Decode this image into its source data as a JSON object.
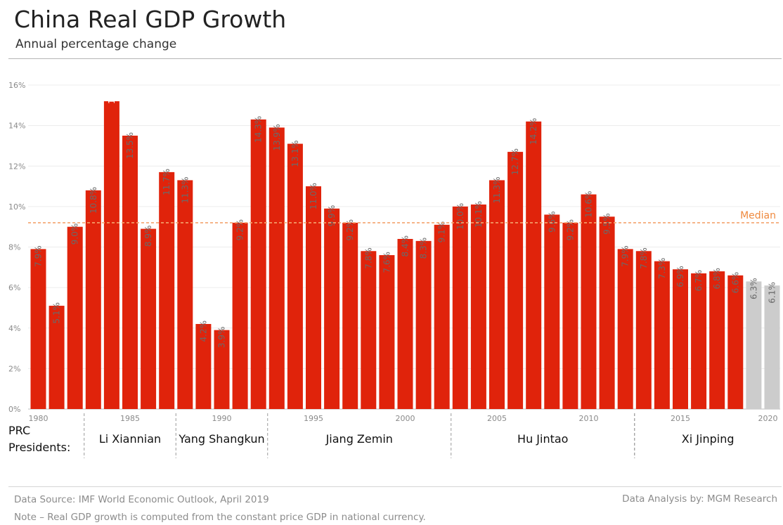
{
  "header": {
    "title": "China Real GDP Growth",
    "subtitle": "Annual percentage change"
  },
  "footer": {
    "source": "Data Source: IMF World Economic Outlook, April 2019",
    "note": "Note – Real GDP growth is computed from the constant price GDP in national currency.",
    "analysis": "Data Analysis by: MGM Research"
  },
  "colors": {
    "bar": "#e0230b",
    "forecast_bar": "#cccccc",
    "median_line": "#f4a46e",
    "median_label": "#ef8a3f"
  },
  "chart_data": {
    "type": "bar",
    "title": "China Real GDP Growth",
    "subtitle": "Annual percentage change",
    "ylim": [
      0,
      16
    ],
    "y_ticks": [
      "0%",
      "2%",
      "4%",
      "6%",
      "8%",
      "10%",
      "12%",
      "14%",
      "16%"
    ],
    "x_tick_labels": [
      "1980",
      "1985",
      "1990",
      "1995",
      "2000",
      "2005",
      "2010",
      "2015",
      "2020"
    ],
    "grid": true,
    "categories": [
      1980,
      1981,
      1982,
      1983,
      1984,
      1985,
      1986,
      1987,
      1988,
      1989,
      1990,
      1991,
      1992,
      1993,
      1994,
      1995,
      1996,
      1997,
      1998,
      1999,
      2000,
      2001,
      2002,
      2003,
      2004,
      2005,
      2006,
      2007,
      2008,
      2009,
      2010,
      2011,
      2012,
      2013,
      2014,
      2015,
      2016,
      2017,
      2018,
      2019,
      2020
    ],
    "values": [
      7.9,
      5.1,
      9.0,
      10.8,
      15.2,
      13.5,
      8.9,
      11.7,
      11.3,
      4.2,
      3.9,
      9.2,
      14.3,
      13.9,
      13.1,
      11.0,
      9.9,
      9.2,
      7.8,
      7.6,
      8.4,
      8.3,
      9.1,
      10.0,
      10.1,
      11.3,
      12.7,
      14.2,
      9.6,
      9.2,
      10.6,
      9.5,
      7.9,
      7.8,
      7.3,
      6.9,
      6.7,
      6.8,
      6.6,
      6.3,
      6.1
    ],
    "data_labels": [
      "7.9%",
      "5.1%",
      "9.0%",
      "10.8%",
      "15.2%",
      "13.5%",
      "8.9%",
      "11.7%",
      "11.3%",
      "4.2%",
      "3.9%",
      "9.2%",
      "14.3%",
      "13.9%",
      "13.1%",
      "11.0%",
      "9.9%",
      "9.2%",
      "7.8%",
      "7.6%",
      "8.4%",
      "8.3%",
      "9.1%",
      "10.0%",
      "10.1%",
      "11.3%",
      "12.7%",
      "14.2%",
      "9.6%",
      "9.2%",
      "10.6%",
      "9.5%",
      "7.9%",
      "7.8%",
      "7.3%",
      "6.9%",
      "6.7%",
      "6.8%",
      "6.6%",
      "6.3%",
      "6.1%"
    ],
    "forecast_years": [
      2019,
      2020
    ],
    "inside_label_years": [
      1984
    ],
    "median": {
      "label": "Median",
      "value": 9.2
    },
    "presidents": {
      "heading": "PRC\nPresidents:",
      "terms": [
        {
          "name": "Li Xiannian",
          "start": 1983,
          "end": 1987
        },
        {
          "name": "Yang Shangkun",
          "start": 1988,
          "end": 1992
        },
        {
          "name": "Jiang Zemin",
          "start": 1993,
          "end": 2002
        },
        {
          "name": "Hu Jintao",
          "start": 2003,
          "end": 2012
        },
        {
          "name": "Xi Jinping",
          "start": 2013,
          "end": 2020
        }
      ]
    }
  }
}
